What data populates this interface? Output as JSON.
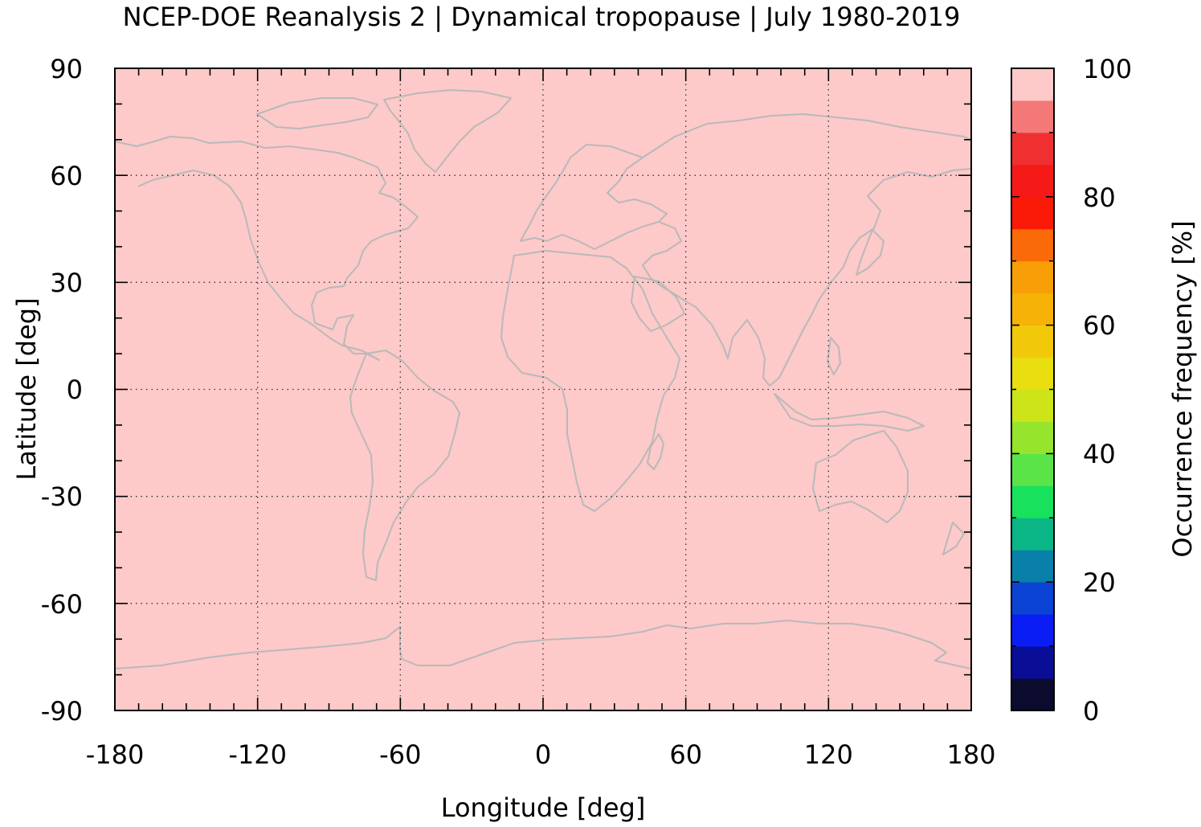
{
  "title": "NCEP-DOE Reanalysis 2 | Dynamical tropopause | July 1980-2019",
  "map": {
    "x_label": "Longitude [deg]",
    "y_label": "Latitude [deg]",
    "x_range": [
      -180,
      180
    ],
    "y_range": [
      -90,
      90
    ],
    "x_ticks": [
      "-180",
      "-120",
      "-60",
      "0",
      "60",
      "120",
      "180"
    ],
    "y_ticks": [
      "90",
      "60",
      "30",
      "0",
      "-30",
      "-60",
      "-90"
    ],
    "fill_color": "#fdc9c9",
    "coastline_color": "#b9b9b9",
    "gridlines": "dotted"
  },
  "colorbar": {
    "label": "Occurrence frequency [%]",
    "range": [
      0,
      100
    ],
    "tick_labels": [
      "100",
      "80",
      "60",
      "40",
      "20",
      "0"
    ],
    "colors_bottom_to_top": [
      "#0b0b2e",
      "#0a0d96",
      "#0a1df5",
      "#0b43d4",
      "#0880a9",
      "#0ab685",
      "#18e25c",
      "#5ae448",
      "#96e42c",
      "#cce418",
      "#e8de10",
      "#f2c90a",
      "#f6b206",
      "#f89e06",
      "#fb6a08",
      "#fb1a08",
      "#f51a18",
      "#f03030",
      "#f57878",
      "#fdc9c9"
    ]
  }
}
